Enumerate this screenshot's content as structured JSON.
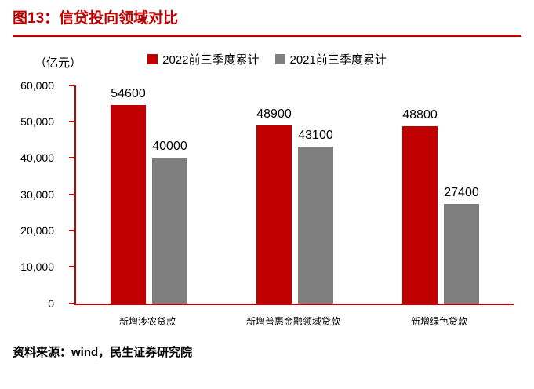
{
  "title": "图13：信贷投向领域对比",
  "source": "资料来源：wind，民生证券研究院",
  "colors": {
    "accent": "#c00000",
    "series_2022": "#c00000",
    "series_2021": "#7f7f7f",
    "axis": "#c00000"
  },
  "chart_data": {
    "type": "bar",
    "title": "信贷投向领域对比",
    "ylabel": "（亿元）",
    "xlabel": "",
    "categories": [
      "新增涉农贷款",
      "新增普惠金融领域贷款",
      "新增绿色贷款"
    ],
    "series": [
      {
        "name": "2022前三季度累计",
        "color": "#c00000",
        "values": [
          54600,
          48900,
          48800
        ]
      },
      {
        "name": "2021前三季度累计",
        "color": "#7f7f7f",
        "values": [
          40000,
          43100,
          27400
        ]
      }
    ],
    "ylim": [
      0,
      60000
    ],
    "ytick_step": 10000,
    "ytick_labels": [
      "0",
      "10,000",
      "20,000",
      "30,000",
      "40,000",
      "50,000",
      "60,000"
    ],
    "legend_position": "top",
    "grid": false
  }
}
